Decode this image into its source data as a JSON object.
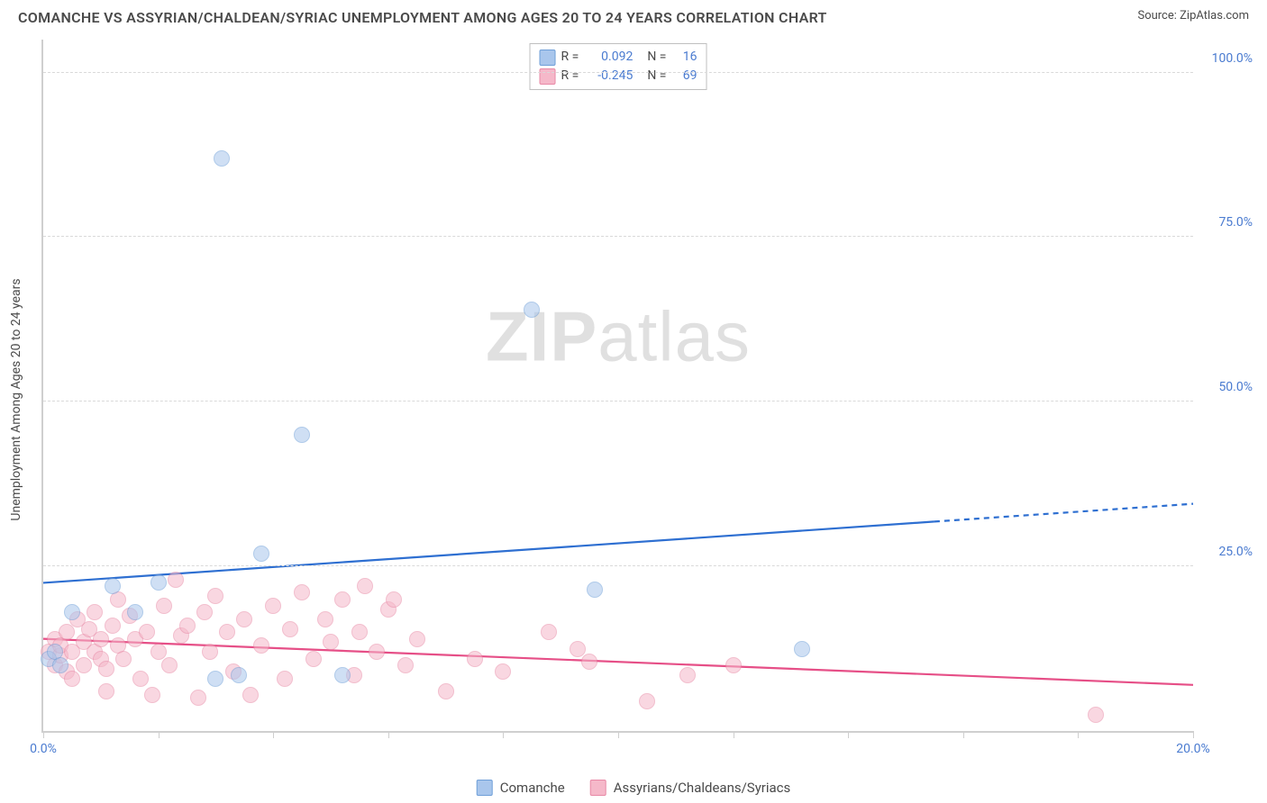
{
  "header": {
    "title": "COMANCHE VS ASSYRIAN/CHALDEAN/SYRIAC UNEMPLOYMENT AMONG AGES 20 TO 24 YEARS CORRELATION CHART",
    "source": "Source: ZipAtlas.com"
  },
  "watermark": {
    "bold": "ZIP",
    "rest": "atlas"
  },
  "chart": {
    "type": "scatter",
    "y_axis_label": "Unemployment Among Ages 20 to 24 years",
    "xlim": [
      0,
      20
    ],
    "ylim": [
      0,
      105
    ],
    "x_ticks": [
      0,
      2,
      4,
      6,
      8,
      10,
      12,
      14,
      16,
      18,
      20
    ],
    "x_tick_labels": {
      "0": "0.0%",
      "20": "20.0%"
    },
    "y_gridlines": [
      25,
      50,
      75,
      100
    ],
    "y_tick_labels": {
      "25": "25.0%",
      "50": "50.0%",
      "75": "75.0%",
      "100": "100.0%"
    },
    "background_color": "#ffffff",
    "grid_color": "#d9d9d9",
    "axis_color": "#cfcfcf",
    "tick_label_color": "#4a7bd0",
    "marker_radius": 9,
    "marker_opacity": 0.55,
    "series": [
      {
        "name": "Comanche",
        "color_fill": "#a9c6ec",
        "color_stroke": "#6f9fd8",
        "stats": {
          "R": "0.092",
          "N": "16"
        },
        "trend": {
          "color": "#2e6fd1",
          "width": 2.2,
          "y_at_x0": 22.5,
          "y_at_x20": 34.5,
          "dashed_from_x": 15.5
        },
        "points": [
          [
            0.1,
            11.0
          ],
          [
            0.2,
            12.0
          ],
          [
            0.3,
            10.0
          ],
          [
            0.5,
            18.0
          ],
          [
            1.2,
            22.0
          ],
          [
            1.6,
            18.0
          ],
          [
            2.0,
            22.5
          ],
          [
            3.1,
            87.0
          ],
          [
            3.8,
            27.0
          ],
          [
            3.0,
            8.0
          ],
          [
            3.4,
            8.5
          ],
          [
            4.5,
            45.0
          ],
          [
            5.2,
            8.5
          ],
          [
            8.5,
            64.0
          ],
          [
            9.6,
            21.5
          ],
          [
            13.2,
            12.5
          ]
        ]
      },
      {
        "name": "Assyrians/Chaldeans/Syriacs",
        "color_fill": "#f5b8c9",
        "color_stroke": "#e889a6",
        "stats": {
          "R": "-0.245",
          "N": "69"
        },
        "trend": {
          "color": "#e64f87",
          "width": 2.2,
          "y_at_x0": 14.0,
          "y_at_x20": 7.0,
          "dashed_from_x": null
        },
        "points": [
          [
            0.1,
            12.0
          ],
          [
            0.2,
            10.0
          ],
          [
            0.2,
            14.0
          ],
          [
            0.3,
            11.5
          ],
          [
            0.3,
            13.0
          ],
          [
            0.4,
            9.0
          ],
          [
            0.4,
            15.0
          ],
          [
            0.5,
            12.0
          ],
          [
            0.5,
            8.0
          ],
          [
            0.6,
            17.0
          ],
          [
            0.7,
            13.5
          ],
          [
            0.7,
            10.0
          ],
          [
            0.8,
            15.5
          ],
          [
            0.9,
            12.0
          ],
          [
            0.9,
            18.0
          ],
          [
            1.0,
            11.0
          ],
          [
            1.0,
            14.0
          ],
          [
            1.1,
            9.5
          ],
          [
            1.2,
            16.0
          ],
          [
            1.3,
            13.0
          ],
          [
            1.3,
            20.0
          ],
          [
            1.4,
            11.0
          ],
          [
            1.5,
            17.5
          ],
          [
            1.6,
            14.0
          ],
          [
            1.7,
            8.0
          ],
          [
            1.8,
            15.0
          ],
          [
            1.9,
            5.5
          ],
          [
            2.0,
            12.0
          ],
          [
            2.1,
            19.0
          ],
          [
            2.2,
            10.0
          ],
          [
            2.3,
            23.0
          ],
          [
            2.4,
            14.5
          ],
          [
            2.5,
            16.0
          ],
          [
            2.7,
            5.0
          ],
          [
            2.8,
            18.0
          ],
          [
            2.9,
            12.0
          ],
          [
            3.0,
            20.5
          ],
          [
            3.2,
            15.0
          ],
          [
            3.3,
            9.0
          ],
          [
            3.5,
            17.0
          ],
          [
            3.6,
            5.5
          ],
          [
            3.8,
            13.0
          ],
          [
            4.0,
            19.0
          ],
          [
            4.2,
            8.0
          ],
          [
            4.3,
            15.5
          ],
          [
            4.5,
            21.0
          ],
          [
            4.7,
            11.0
          ],
          [
            4.9,
            17.0
          ],
          [
            5.0,
            13.5
          ],
          [
            5.2,
            20.0
          ],
          [
            5.4,
            8.5
          ],
          [
            5.5,
            15.0
          ],
          [
            5.6,
            22.0
          ],
          [
            5.8,
            12.0
          ],
          [
            6.0,
            18.5
          ],
          [
            6.1,
            20.0
          ],
          [
            6.3,
            10.0
          ],
          [
            6.5,
            14.0
          ],
          [
            7.0,
            6.0
          ],
          [
            7.5,
            11.0
          ],
          [
            8.0,
            9.0
          ],
          [
            8.8,
            15.0
          ],
          [
            9.3,
            12.5
          ],
          [
            9.5,
            10.5
          ],
          [
            10.5,
            4.5
          ],
          [
            11.2,
            8.5
          ],
          [
            12.0,
            10.0
          ],
          [
            18.3,
            2.5
          ],
          [
            1.1,
            6.0
          ]
        ]
      }
    ]
  },
  "stats_box": {
    "R_label": "R  =",
    "N_label": "N  ="
  },
  "legend": {
    "items": [
      {
        "label": "Comanche",
        "fill": "#a9c6ec",
        "stroke": "#6f9fd8"
      },
      {
        "label": "Assyrians/Chaldeans/Syriacs",
        "fill": "#f5b8c9",
        "stroke": "#e889a6"
      }
    ]
  }
}
